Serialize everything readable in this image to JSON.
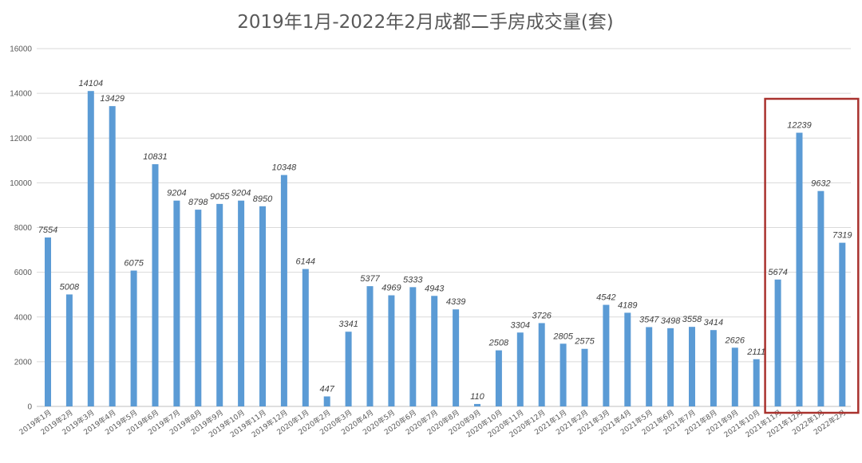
{
  "chart_data": {
    "type": "bar",
    "title": "2019年1月-2022年2月成都二手房成交量(套)",
    "xlabel": "",
    "ylabel": "",
    "ylim": [
      0,
      16000
    ],
    "yticks": [
      0,
      2000,
      4000,
      6000,
      8000,
      10000,
      12000,
      14000,
      16000
    ],
    "grid": true,
    "legend": "none",
    "bar_color": "#5b9bd5",
    "highlight_color": "#a9322e",
    "highlighted_categories": [
      "2021年11月",
      "2021年12月",
      "2022年1月",
      "2022年2月"
    ],
    "categories": [
      "2019年1月",
      "2019年2月",
      "2019年3月",
      "2019年4月",
      "2019年5月",
      "2019年6月",
      "2019年7月",
      "2019年8月",
      "2019年9月",
      "2019年10月",
      "2019年11月",
      "2019年12月",
      "2020年1月",
      "2020年2月",
      "2020年3月",
      "2020年4月",
      "2020年5月",
      "2020年6月",
      "2020年7月",
      "2020年8月",
      "2020年9月",
      "2020年10月",
      "2020年11月",
      "2020年12月",
      "2021年1月",
      "2021年2月",
      "2021年3月",
      "2021年4月",
      "2021年5月",
      "2021年6月",
      "2021年7月",
      "2021年8月",
      "2021年9月",
      "2021年10月",
      "2021年11月",
      "2021年12月",
      "2022年1月",
      "2022年2月"
    ],
    "values": [
      7554,
      5008,
      14104,
      13429,
      6075,
      10831,
      9204,
      8798,
      9055,
      9204,
      8950,
      10348,
      6144,
      447,
      3341,
      5377,
      4969,
      5333,
      4943,
      4339,
      110,
      2508,
      3304,
      3726,
      2805,
      2575,
      4542,
      4189,
      3547,
      3498,
      3558,
      3414,
      2626,
      2111,
      5674,
      12239,
      9632,
      7319
    ]
  }
}
